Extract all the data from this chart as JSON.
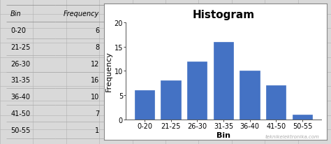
{
  "bins": [
    "0-20",
    "21-25",
    "26-30",
    "31-35",
    "36-40",
    "41-50",
    "50-55"
  ],
  "frequencies": [
    6,
    8,
    12,
    16,
    10,
    7,
    1
  ],
  "title": "Histogram",
  "xlabel": "Bin",
  "ylabel": "Frequency",
  "bar_color": "#4472C4",
  "bar_edgecolor": "#4472C4",
  "ylim": [
    0,
    20
  ],
  "yticks": [
    0,
    5,
    10,
    15,
    20
  ],
  "title_fontsize": 11,
  "axis_label_fontsize": 8,
  "tick_fontsize": 7,
  "table_bins": [
    "0-20",
    "21-25",
    "26-30",
    "31-35",
    "36-40",
    "41-50",
    "50-55"
  ],
  "table_freqs": [
    6,
    8,
    12,
    16,
    10,
    7,
    1
  ],
  "watermark": "teknikelektronika.com",
  "bg_color": "#d9d9d9",
  "plot_bg_color": "#ffffff",
  "cell_bg": "#ffffff",
  "grid_color": "#b0b0b0"
}
